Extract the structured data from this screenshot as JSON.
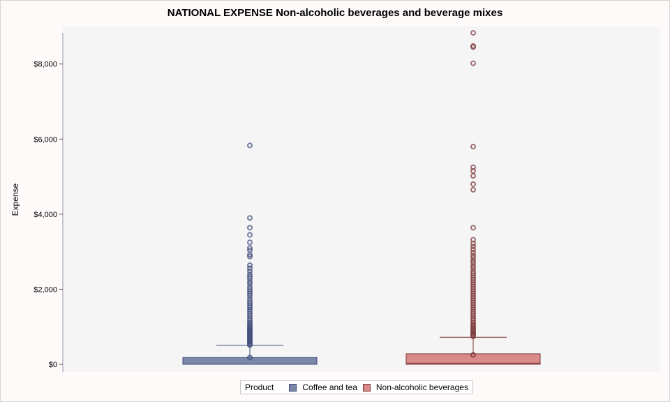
{
  "chart_data": {
    "type": "box",
    "title": "NATIONAL EXPENSE Non-alcoholic beverages and beverage mixes",
    "xlabel": "",
    "ylabel": "Expense",
    "ylim": [
      0,
      8850
    ],
    "yticks": [
      0,
      2000,
      4000,
      6000,
      8000
    ],
    "ytick_labels": [
      "$0",
      "$2,000",
      "$4,000",
      "$6,000",
      "$8,000"
    ],
    "legend_title": "Product",
    "legend_position": "bottom-center",
    "grid": false,
    "series": [
      {
        "name": "Coffee and tea",
        "color": "#7b86aa",
        "edge": "#3d4a7a",
        "min": 0,
        "q1": 0,
        "median": 0,
        "q3": 180,
        "whisker_high": 510,
        "mean": 180,
        "outliers": [
          5830,
          3900,
          3640,
          3450,
          3250,
          3100,
          3040,
          2920,
          2870,
          2640,
          2560,
          2480,
          2400,
          2340,
          2280,
          2200,
          2140,
          2060,
          2000,
          1940,
          1880,
          1820,
          1740,
          1680,
          1620,
          1560,
          1520,
          1460,
          1400,
          1340,
          1280,
          1220,
          1170,
          1120,
          1080,
          1040,
          1000,
          960,
          930,
          900,
          870,
          840,
          810,
          780,
          750,
          720,
          690,
          660,
          630,
          600,
          570,
          540,
          510
        ]
      },
      {
        "name": "Non-alcoholic beverages",
        "color": "#d98a8a",
        "edge": "#7a3535",
        "min": 0,
        "q1": 0,
        "median": 30,
        "q3": 280,
        "whisker_high": 720,
        "mean": 250,
        "outliers": [
          8830,
          8480,
          8450,
          8020,
          5800,
          5250,
          5150,
          5020,
          4800,
          4650,
          3640,
          3320,
          3220,
          3140,
          3060,
          2980,
          2900,
          2840,
          2760,
          2700,
          2620,
          2560,
          2480,
          2420,
          2360,
          2300,
          2240,
          2180,
          2120,
          2060,
          2000,
          1940,
          1880,
          1820,
          1760,
          1700,
          1640,
          1580,
          1520,
          1460,
          1400,
          1340,
          1280,
          1220,
          1170,
          1120,
          1070,
          1030,
          990,
          950,
          910,
          870,
          830,
          800,
          770,
          740
        ]
      }
    ]
  }
}
